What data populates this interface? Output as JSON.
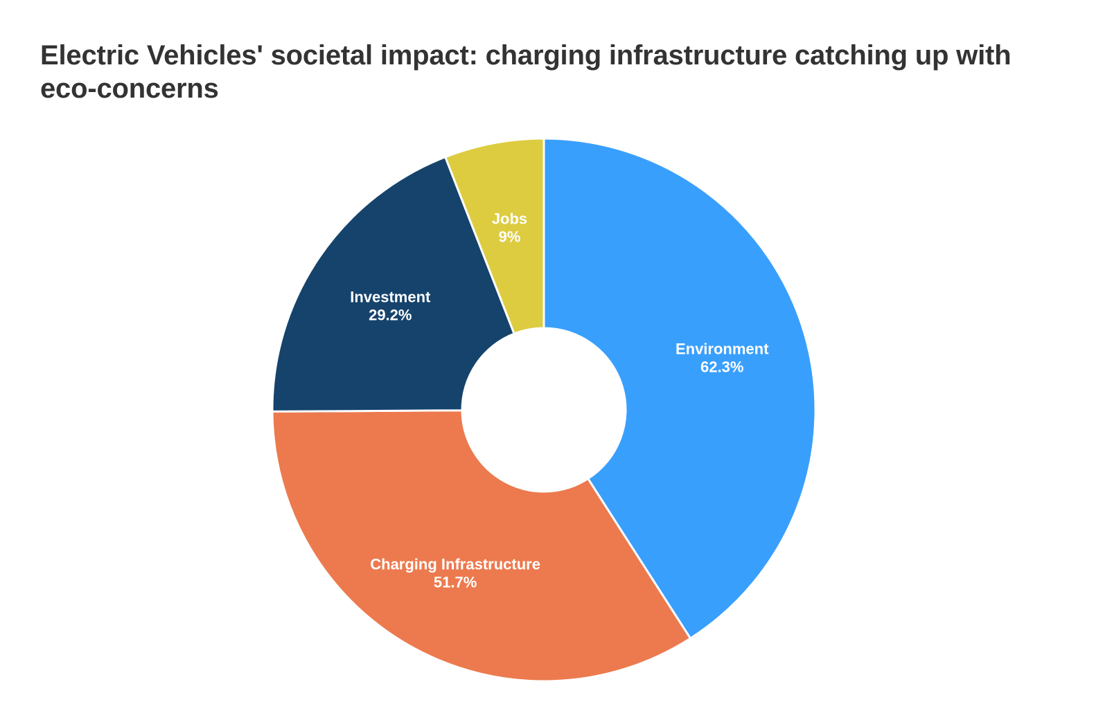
{
  "chart_data": {
    "type": "pie",
    "variant": "donut",
    "title": "Electric Vehicles' societal impact: charging infrastructure catching up with eco-concerns",
    "categories": [
      "Environment",
      "Charging Infrastructure",
      "Investment",
      "Jobs"
    ],
    "values": [
      62.3,
      51.7,
      29.2,
      9
    ],
    "value_labels": [
      "62.3%",
      "51.7%",
      "29.2%",
      "9%"
    ],
    "colors": [
      "#399ffd",
      "#ec7a4e",
      "#15436c",
      "#ddcc40"
    ],
    "legend": "none"
  }
}
